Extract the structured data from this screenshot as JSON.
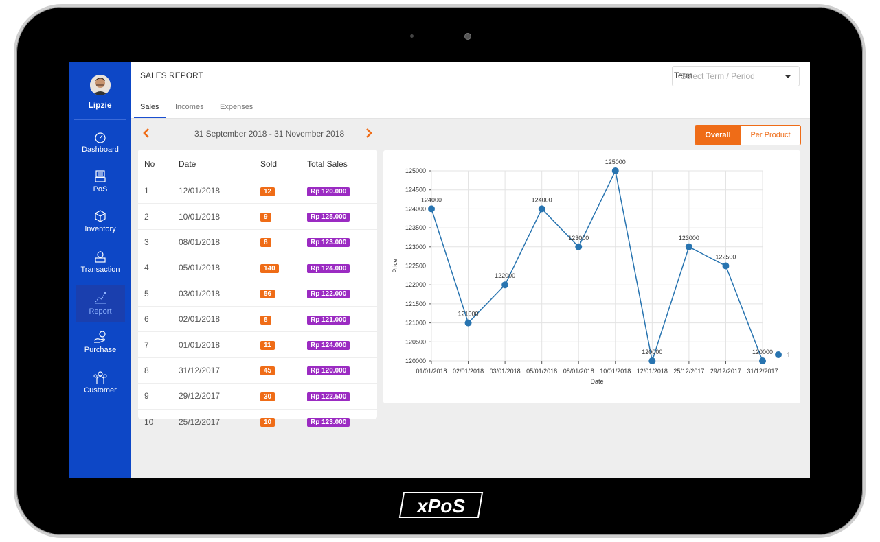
{
  "user": {
    "name": "Lipzie"
  },
  "sidebar": {
    "items": [
      {
        "label": "Dashboard",
        "icon": "dashboard-icon"
      },
      {
        "label": "PoS",
        "icon": "pos-icon"
      },
      {
        "label": "Inventory",
        "icon": "box-icon"
      },
      {
        "label": "Transaction",
        "icon": "transaction-icon"
      },
      {
        "label": "Report",
        "icon": "chart-icon"
      },
      {
        "label": "Purchase",
        "icon": "purchase-icon"
      },
      {
        "label": "Customer",
        "icon": "customer-icon"
      }
    ]
  },
  "header": {
    "title": "SALES REPORT",
    "term_label": "Term",
    "term_placeholder": "Select Term / Period"
  },
  "tabs": [
    "Sales",
    "Incomes",
    "Expenses"
  ],
  "date_range": "31 September 2018 - 31 November 2018",
  "toggle": {
    "overall": "Overall",
    "per_product": "Per Product"
  },
  "table": {
    "headers": [
      "No",
      "Date",
      "Sold",
      "Total Sales"
    ],
    "rows": [
      {
        "no": "1",
        "date": "12/01/2018",
        "sold": "12",
        "total": "Rp 120.000"
      },
      {
        "no": "2",
        "date": "10/01/2018",
        "sold": "9",
        "total": "Rp 125.000"
      },
      {
        "no": "3",
        "date": "08/01/2018",
        "sold": "8",
        "total": "Rp 123.000"
      },
      {
        "no": "4",
        "date": "05/01/2018",
        "sold": "140",
        "total": "Rp 124.000"
      },
      {
        "no": "5",
        "date": "03/01/2018",
        "sold": "56",
        "total": "Rp 122.000"
      },
      {
        "no": "6",
        "date": "02/01/2018",
        "sold": "8",
        "total": "Rp 121.000"
      },
      {
        "no": "7",
        "date": "01/01/2018",
        "sold": "11",
        "total": "Rp 124.000"
      },
      {
        "no": "8",
        "date": "31/12/2017",
        "sold": "45",
        "total": "Rp 120.000"
      },
      {
        "no": "9",
        "date": "29/12/2017",
        "sold": "30",
        "total": "Rp 122.500"
      },
      {
        "no": "10",
        "date": "25/12/2017",
        "sold": "10",
        "total": "Rp 123.000"
      }
    ]
  },
  "chart_data": {
    "type": "line",
    "xlabel": "Date",
    "ylabel": "Price",
    "categories": [
      "01/01/2018",
      "02/01/2018",
      "03/01/2018",
      "05/01/2018",
      "08/01/2018",
      "10/01/2018",
      "12/01/2018",
      "25/12/2017",
      "29/12/2017",
      "31/12/2017"
    ],
    "series": [
      {
        "name": "1",
        "values": [
          124000,
          121000,
          122000,
          124000,
          123000,
          125000,
          120000,
          123000,
          122500,
          120000
        ]
      }
    ],
    "ylim": [
      120000,
      125000
    ],
    "yticks": [
      120000,
      120500,
      121000,
      121500,
      122000,
      122500,
      123000,
      123500,
      124000,
      124500,
      125000
    ],
    "grid": true,
    "legend": "right",
    "color": "#2874b0"
  },
  "brand": "xPoS",
  "colors": {
    "sidebar": "#0d47c6",
    "accent": "#ef6c17",
    "badge_purple": "#9b2bc2"
  }
}
